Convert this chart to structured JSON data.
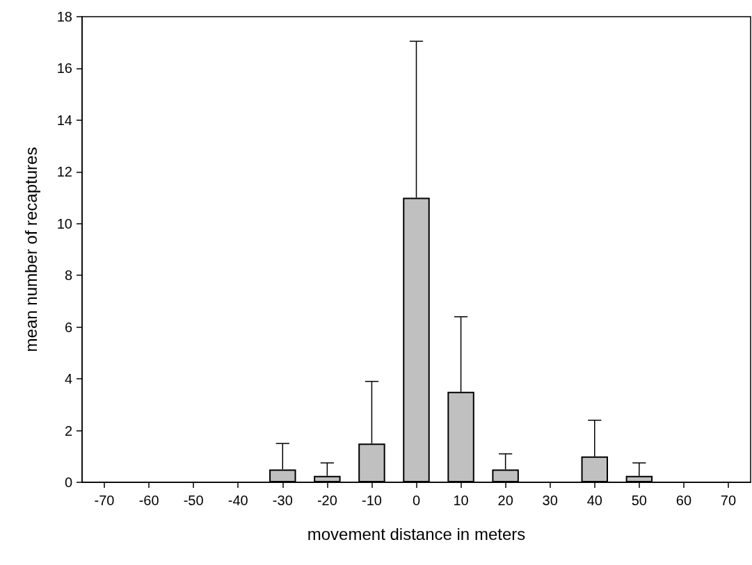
{
  "chart_data": {
    "type": "bar",
    "xlabel": "movement distance in meters",
    "ylabel": "mean number of recaptures",
    "categories": [
      "-70",
      "-60",
      "-50",
      "-40",
      "-30",
      "-20",
      "-10",
      "0",
      "10",
      "20",
      "30",
      "40",
      "50",
      "60",
      "70"
    ],
    "values": [
      0,
      0,
      0,
      0,
      0.5,
      0.25,
      1.5,
      11,
      3.5,
      0.5,
      0,
      1,
      0.25,
      0,
      0
    ],
    "errors": [
      null,
      null,
      null,
      null,
      [
        0.5,
        1.5
      ],
      [
        0.25,
        0.75
      ],
      [
        1.5,
        3.9
      ],
      [
        11,
        17.05
      ],
      [
        3.5,
        6.4
      ],
      [
        0.5,
        1.1
      ],
      null,
      [
        1,
        2.4
      ],
      [
        0.25,
        0.75
      ],
      null,
      null
    ],
    "color": "#c0c0c0",
    "ylim": [
      0,
      18
    ],
    "yticks": [
      0,
      2,
      4,
      6,
      8,
      10,
      12,
      14,
      16,
      18
    ],
    "grid": false
  }
}
